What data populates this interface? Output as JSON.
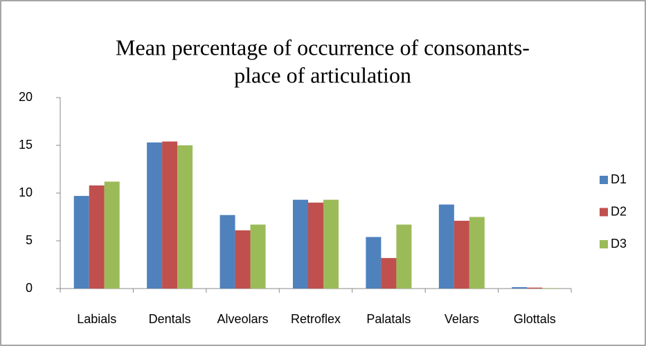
{
  "chart_data": {
    "type": "bar",
    "title": [
      "Mean percentage of occurrence of consonants-",
      "place of articulation"
    ],
    "categories": [
      "Labials",
      "Dentals",
      "Alveolars",
      "Retroflex",
      "Palatals",
      "Velars",
      "Glottals"
    ],
    "series": [
      {
        "name": "D1",
        "color": "#4f81bd",
        "values": [
          9.7,
          15.3,
          7.7,
          9.3,
          5.4,
          8.8,
          0.15
        ]
      },
      {
        "name": "D2",
        "color": "#c0504d",
        "values": [
          10.8,
          15.4,
          6.1,
          9.0,
          3.2,
          7.1,
          0.1
        ]
      },
      {
        "name": "D3",
        "color": "#9bbb59",
        "values": [
          11.2,
          15.0,
          6.7,
          9.3,
          6.7,
          7.5,
          0.05
        ]
      }
    ],
    "ylim": [
      0,
      20
    ],
    "yticks": [
      0,
      5,
      10,
      15,
      20
    ],
    "grid": false,
    "legend": "right"
  }
}
